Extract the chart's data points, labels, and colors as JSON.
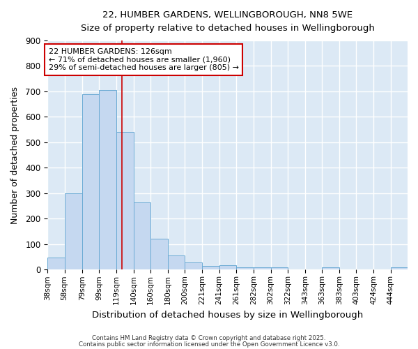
{
  "title1": "22, HUMBER GARDENS, WELLINGBOROUGH, NN8 5WE",
  "title2": "Size of property relative to detached houses in Wellingborough",
  "xlabel": "Distribution of detached houses by size in Wellingborough",
  "ylabel": "Number of detached properties",
  "bin_labels": [
    "38sqm",
    "58sqm",
    "79sqm",
    "99sqm",
    "119sqm",
    "140sqm",
    "160sqm",
    "180sqm",
    "200sqm",
    "221sqm",
    "241sqm",
    "261sqm",
    "282sqm",
    "302sqm",
    "322sqm",
    "343sqm",
    "363sqm",
    "383sqm",
    "403sqm",
    "424sqm",
    "444sqm"
  ],
  "bin_edges": [
    38,
    58,
    79,
    99,
    119,
    140,
    160,
    180,
    200,
    221,
    241,
    261,
    282,
    302,
    322,
    343,
    363,
    383,
    403,
    424,
    444,
    464
  ],
  "bar_heights": [
    47,
    300,
    690,
    705,
    540,
    265,
    122,
    57,
    28,
    14,
    18,
    8,
    10,
    8,
    2,
    0,
    8,
    2,
    0,
    0,
    8
  ],
  "bar_facecolor": "#c5d8f0",
  "bar_edgecolor": "#6aaad4",
  "plot_bg_color": "#dce9f5",
  "fig_bg_color": "#ffffff",
  "grid_color": "#ffffff",
  "red_line_x": 126,
  "annotation_title": "22 HUMBER GARDENS: 126sqm",
  "annotation_line2": "← 71% of detached houses are smaller (1,960)",
  "annotation_line3": "29% of semi-detached houses are larger (805) →",
  "annotation_box_color": "#cc0000",
  "ylim": [
    0,
    900
  ],
  "yticks": [
    0,
    100,
    200,
    300,
    400,
    500,
    600,
    700,
    800,
    900
  ],
  "footer1": "Contains HM Land Registry data © Crown copyright and database right 2025.",
  "footer2": "Contains public sector information licensed under the Open Government Licence v3.0."
}
